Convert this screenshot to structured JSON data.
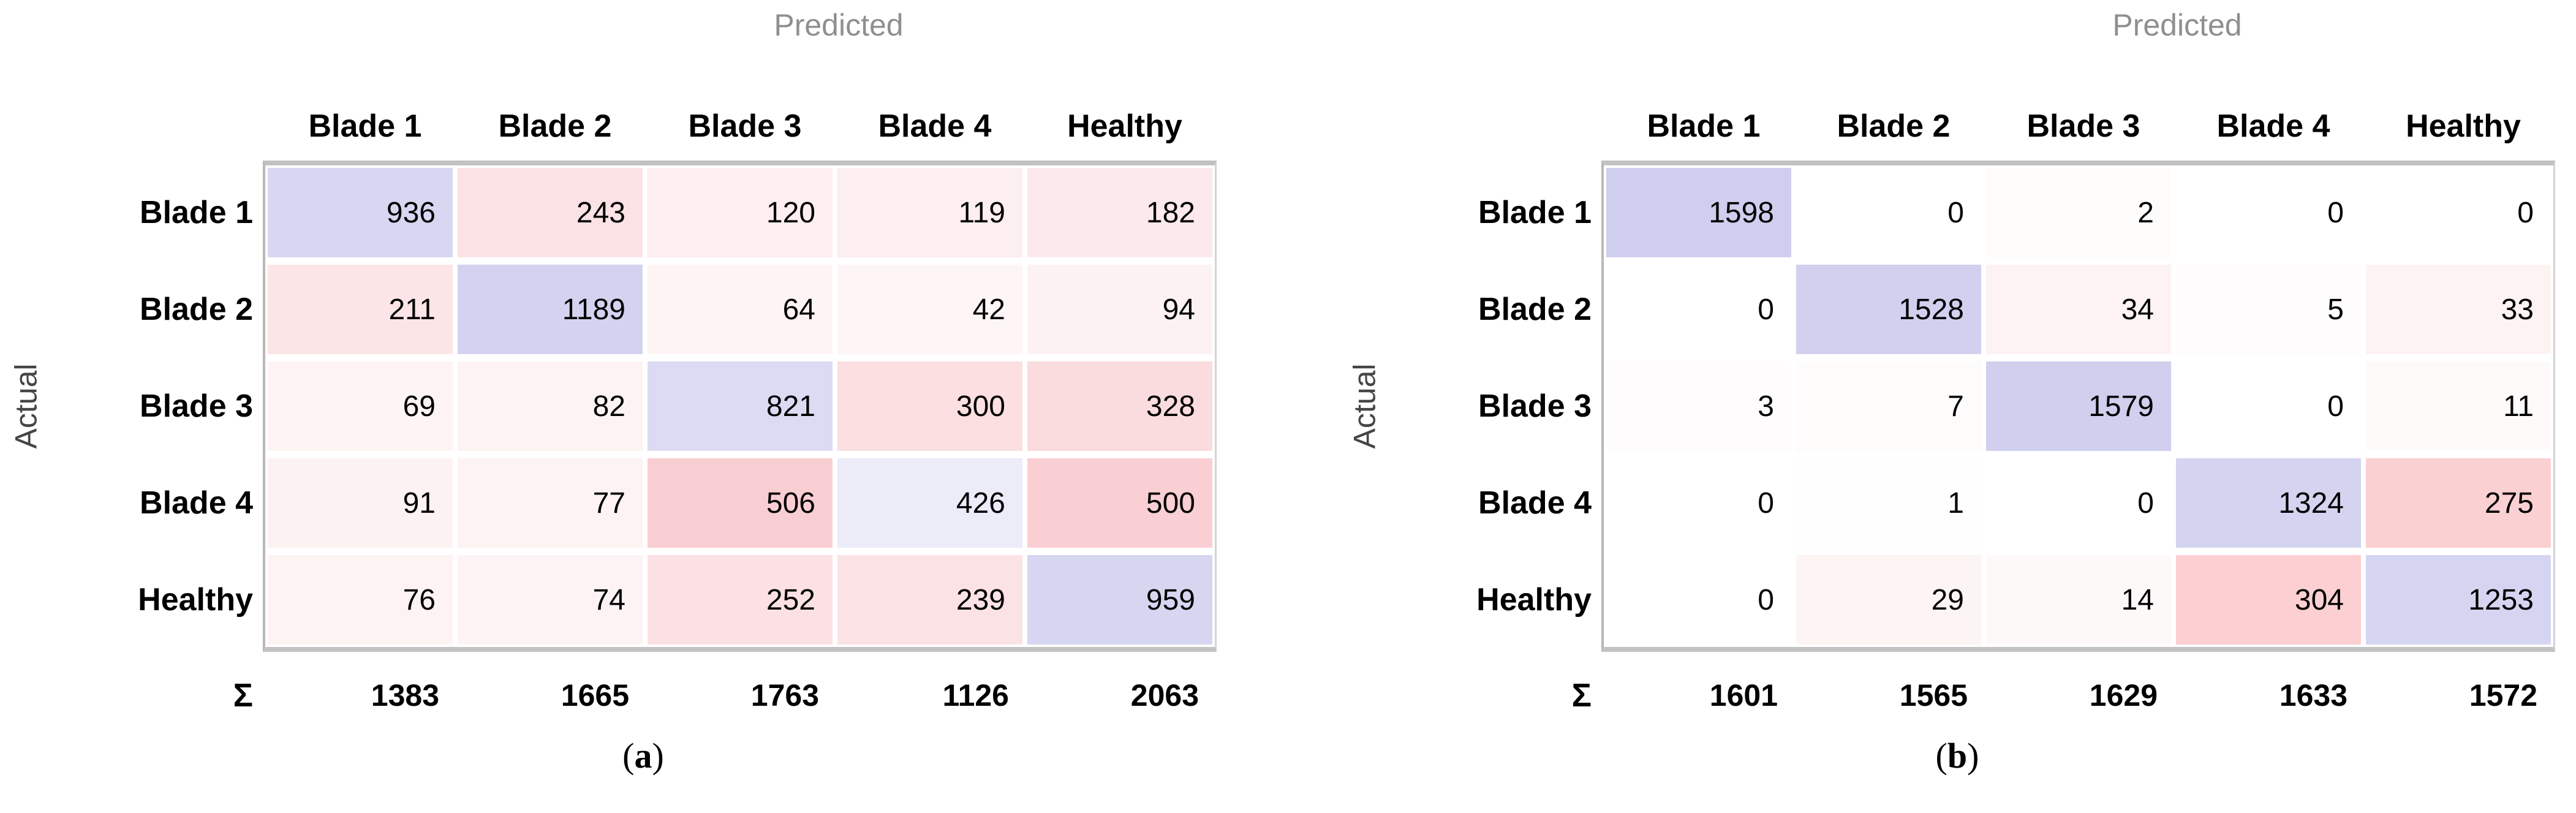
{
  "figure": {
    "panels": [
      {
        "id": "a",
        "predicted_label": "Predicted",
        "actual_label": "Actual",
        "col_headers": [
          "Blade 1",
          "Blade 2",
          "Blade 3",
          "Blade 4",
          "Healthy"
        ],
        "row_headers": [
          "Blade 1",
          "Blade 2",
          "Blade 3",
          "Blade 4",
          "Healthy"
        ],
        "sum_symbol": "Σ",
        "rows": [
          {
            "values": [
              "936",
              "243",
              "120",
              "119",
              "182"
            ],
            "colors": [
              "#d8d7f2",
              "#fbe2e4",
              "#fdeeef",
              "#fdeeef",
              "#fce9eb"
            ]
          },
          {
            "values": [
              "211",
              "1189",
              "64",
              "42",
              "94"
            ],
            "colors": [
              "#fce5e7",
              "#d3d2f0",
              "#fef4f4",
              "#fef6f6",
              "#fdf2f2"
            ]
          },
          {
            "values": [
              "69",
              "82",
              "821",
              "300",
              "328"
            ],
            "colors": [
              "#fef4f4",
              "#fef3f3",
              "#dcdbf3",
              "#fbdfe1",
              "#fadcde"
            ]
          },
          {
            "values": [
              "91",
              "77",
              "506",
              "426",
              "500"
            ],
            "colors": [
              "#fdf2f2",
              "#fef3f3",
              "#f9ced2",
              "#ecebf8",
              "#f9cfd3"
            ]
          },
          {
            "values": [
              "76",
              "74",
              "252",
              "239",
              "959"
            ],
            "colors": [
              "#fef3f3",
              "#fef3f4",
              "#fbe1e3",
              "#fbe2e4",
              "#d7d6f1"
            ]
          }
        ],
        "col_sums": [
          "1383",
          "1665",
          "1763",
          "1126",
          "2063"
        ],
        "caption": {
          "open": "(",
          "letter": "a",
          "close": ")"
        }
      },
      {
        "id": "b",
        "predicted_label": "Predicted",
        "actual_label": "Actual",
        "col_headers": [
          "Blade 1",
          "Blade 2",
          "Blade 3",
          "Blade 4",
          "Healthy"
        ],
        "row_headers": [
          "Blade 1",
          "Blade 2",
          "Blade 3",
          "Blade 4",
          "Healthy"
        ],
        "sum_symbol": "Σ",
        "rows": [
          {
            "values": [
              "1598",
              "0",
              "2",
              "0",
              "0"
            ],
            "colors": [
              "#cfceee",
              "#ffffff",
              "#fefbfb",
              "#ffffff",
              "#ffffff"
            ]
          },
          {
            "values": [
              "0",
              "1528",
              "34",
              "5",
              "33"
            ],
            "colors": [
              "#ffffff",
              "#d1d0ef",
              "#fdf3f3",
              "#fefcfc",
              "#fdf3f3"
            ]
          },
          {
            "values": [
              "3",
              "7",
              "1579",
              "0",
              "11"
            ],
            "colors": [
              "#fefcfc",
              "#fefbfb",
              "#d0cfee",
              "#ffffff",
              "#fefafa"
            ]
          },
          {
            "values": [
              "0",
              "1",
              "0",
              "1324",
              "275"
            ],
            "colors": [
              "#ffffff",
              "#fffefe",
              "#ffffff",
              "#d5d4f0",
              "#fbd0d3"
            ]
          },
          {
            "values": [
              "0",
              "29",
              "14",
              "304",
              "1253"
            ],
            "colors": [
              "#ffffff",
              "#fdf4f4",
              "#fef9f9",
              "#fccfd2",
              "#d6d5f1"
            ]
          }
        ],
        "col_sums": [
          "1601",
          "1565",
          "1629",
          "1633",
          "1572"
        ],
        "caption": {
          "open": "(",
          "letter": "b",
          "close": ")"
        }
      }
    ],
    "colors": {
      "diagonal_fill": "#d4d3f0",
      "offdiagonal_fill": "#f9ced2",
      "axis_title_gray": "#8f8f8f",
      "actual_label_gray": "#454545",
      "grid_border": "#c2c2c2"
    }
  },
  "chart_data": [
    {
      "type": "heatmap",
      "title": "(a)",
      "xlabel": "Predicted",
      "ylabel": "Actual",
      "x_categories": [
        "Blade 1",
        "Blade 2",
        "Blade 3",
        "Blade 4",
        "Healthy"
      ],
      "y_categories": [
        "Blade 1",
        "Blade 2",
        "Blade 3",
        "Blade 4",
        "Healthy"
      ],
      "values": [
        [
          936,
          243,
          120,
          119,
          182
        ],
        [
          211,
          1189,
          64,
          42,
          94
        ],
        [
          69,
          82,
          821,
          300,
          328
        ],
        [
          91,
          77,
          506,
          426,
          500
        ],
        [
          76,
          74,
          252,
          239,
          959
        ]
      ],
      "column_sums": [
        1383,
        1665,
        1763,
        1126,
        2063
      ],
      "colormap": "blue tint on diagonal (correct), red tint off-diagonal, intensity proportional to count",
      "grid": false,
      "legend": "none"
    },
    {
      "type": "heatmap",
      "title": "(b)",
      "xlabel": "Predicted",
      "ylabel": "Actual",
      "x_categories": [
        "Blade 1",
        "Blade 2",
        "Blade 3",
        "Blade 4",
        "Healthy"
      ],
      "y_categories": [
        "Blade 1",
        "Blade 2",
        "Blade 3",
        "Blade 4",
        "Healthy"
      ],
      "values": [
        [
          1598,
          0,
          2,
          0,
          0
        ],
        [
          0,
          1528,
          34,
          5,
          33
        ],
        [
          3,
          7,
          1579,
          0,
          11
        ],
        [
          0,
          1,
          0,
          1324,
          275
        ],
        [
          0,
          29,
          14,
          304,
          1253
        ]
      ],
      "column_sums": [
        1601,
        1565,
        1629,
        1633,
        1572
      ],
      "colormap": "blue tint on diagonal (correct), red tint off-diagonal, intensity proportional to count",
      "grid": false,
      "legend": "none"
    }
  ]
}
